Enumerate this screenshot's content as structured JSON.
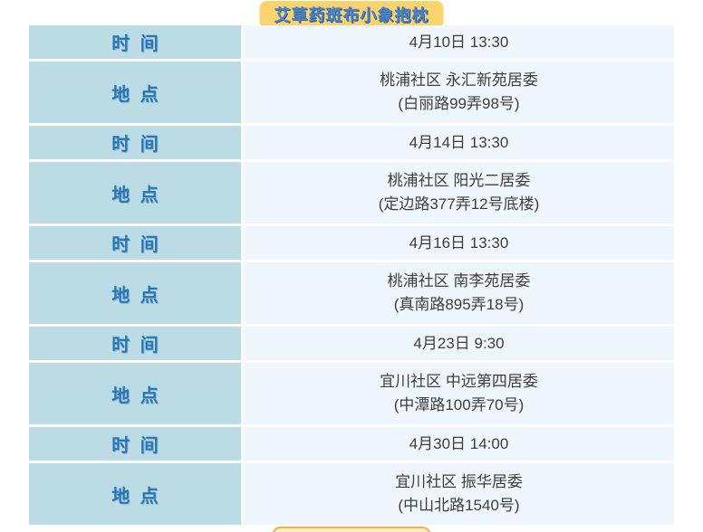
{
  "header": {
    "title": "艾草药斑布小象抱枕"
  },
  "row_labels": {
    "time": "时 间",
    "place": "地 点"
  },
  "schedule": [
    {
      "time": "4月10日 13:30",
      "place_name": "桃浦社区 永汇新苑居委",
      "place_address": "(白丽路99弄98号)"
    },
    {
      "time": "4月14日 13:30",
      "place_name": "桃浦社区 阳光二居委",
      "place_address": "(定边路377弄12号底楼)"
    },
    {
      "time": "4月16日 13:30",
      "place_name": "桃浦社区 南李苑居委",
      "place_address": "(真南路895弄18号)"
    },
    {
      "time": "4月23日 9:30",
      "place_name": "宜川社区 中远第四居委",
      "place_address": "(中潭路100弄70号)"
    },
    {
      "time": "4月30日 14:00",
      "place_name": "宜川社区 振华居委",
      "place_address": "(中山北路1540号)"
    }
  ],
  "colors": {
    "label_cell_bg": "#bcdce5",
    "value_cell_bg": "#f0f6fd",
    "label_text": "#2278b7",
    "value_text": "#3e3e3e",
    "title_badge_bg": "#fcd36d",
    "title_text": "#4b82c4",
    "next_badge_edge": "#f2b04d"
  }
}
